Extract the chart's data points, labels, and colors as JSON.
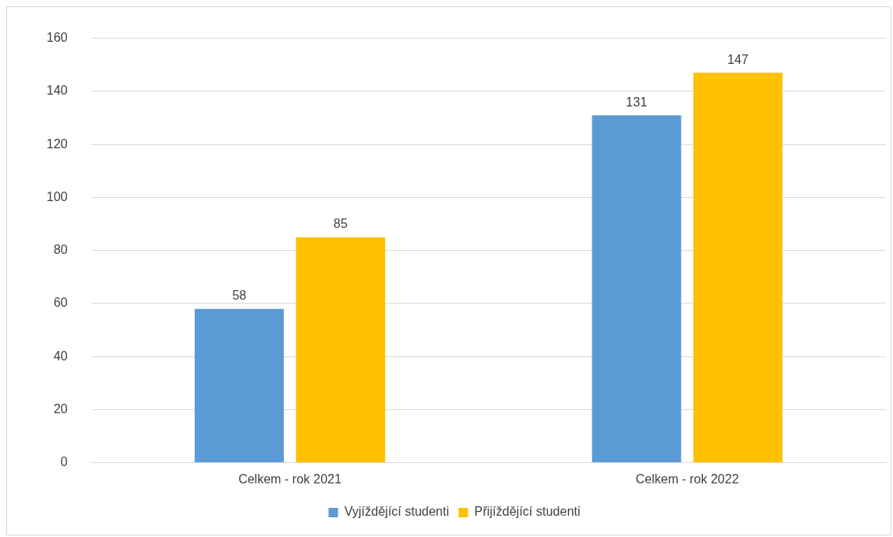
{
  "chart_data": {
    "type": "bar",
    "categories": [
      "Celkem - rok 2021",
      "Celkem - rok 2022"
    ],
    "series": [
      {
        "name": "Vyjíždějící studenti",
        "color": "#5b9bd5",
        "values": [
          58,
          131
        ]
      },
      {
        "name": "Přijíždějící studenti",
        "color": "#ffc000",
        "values": [
          85,
          147
        ]
      }
    ],
    "ylim": [
      0,
      160
    ],
    "yticks": [
      0,
      20,
      40,
      60,
      80,
      100,
      120,
      140,
      160
    ],
    "grid": "y",
    "legend": "bottom",
    "data_labels": true
  }
}
